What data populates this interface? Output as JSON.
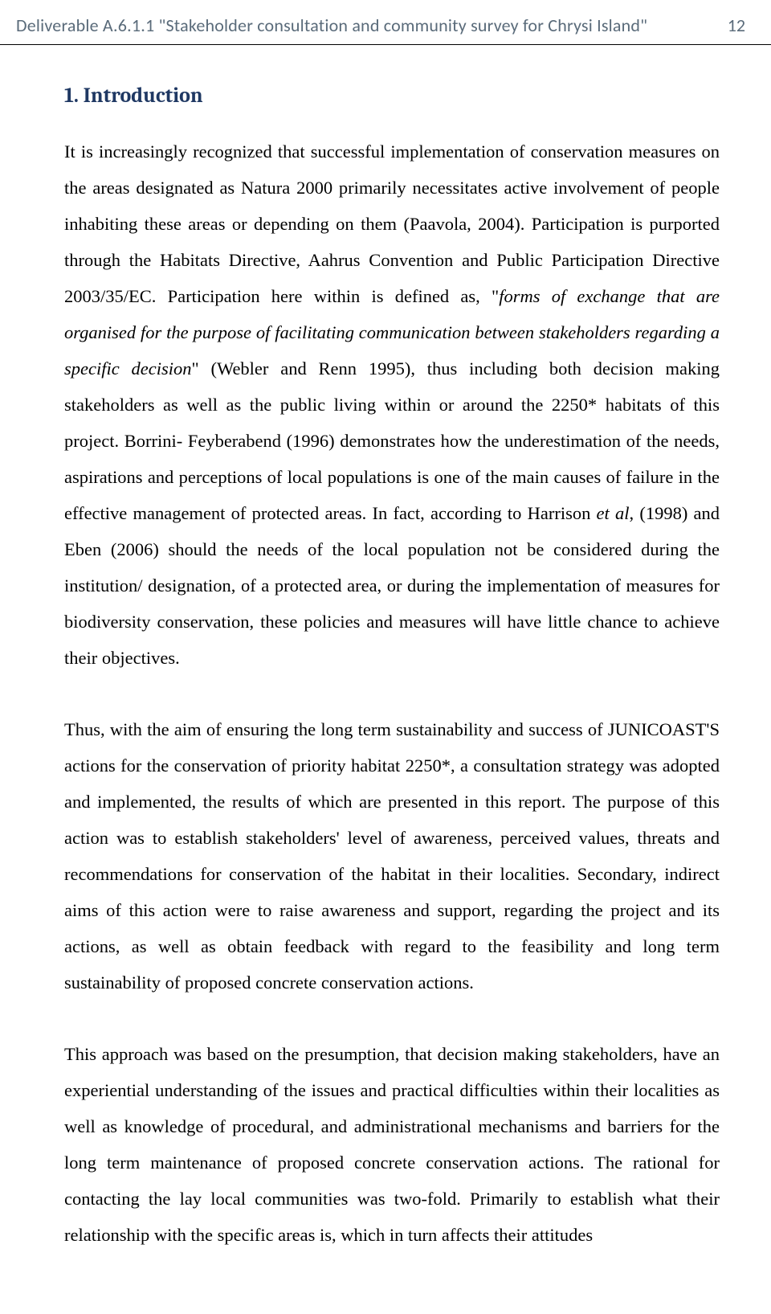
{
  "header": {
    "title": "Deliverable A.6.1.1 \"Stakeholder consultation and community survey for Chrysi Island\"",
    "page_number": "12"
  },
  "section": {
    "heading": "1. Introduction"
  },
  "paragraphs": {
    "p1_a": "It is increasingly recognized that successful implementation of conservation measures on the areas designated as Natura 2000 primarily necessitates active involvement of people inhabiting these areas or depending on them (Paavola, 2004). Participation is purported through the Habitats Directive, Aahrus Convention and Public Participation Directive 2003/35/EC. Participation here within is defined as, \"",
    "p1_italic1": "forms of exchange that are organised for the purpose of facilitating communication between stakeholders regarding a specific decision",
    "p1_b": "\" (Webler and Renn 1995), thus including both decision making stakeholders as well as the public living within or around the 2250* habitats of this project. Borrini- Feyberabend (1996) demonstrates how the underestimation of the needs, aspirations and perceptions of local populations is one of the main causes of failure in the effective management of protected areas. In fact, according to Harrison ",
    "p1_italic2": "et al",
    "p1_c": ", (1998) and Eben (2006) should the needs of the local population not be considered during the institution/ designation, of a protected area, or during the implementation of measures for biodiversity conservation, these policies and measures will have little chance to achieve their objectives.",
    "p2": "Thus, with the aim of ensuring the long term sustainability and success of JUNICOAST'S actions for the conservation of priority habitat 2250*, a consultation strategy was adopted and implemented, the results of which are presented in this report. The purpose of this action was to establish stakeholders' level of awareness, perceived values, threats and recommendations for conservation of the habitat in their localities. Secondary, indirect aims of this action were to raise awareness and support, regarding the project and its actions, as well as obtain feedback with regard to the feasibility and long term sustainability of proposed concrete conservation actions.",
    "p3": "This approach was based on the presumption, that decision making stakeholders, have an experiential understanding of the issues and practical difficulties within their localities as well as knowledge of procedural, and administrational mechanisms and barriers for the long term maintenance of proposed concrete conservation actions. The rational for contacting the lay local communities was two-fold. Primarily to establish what their relationship with the specific areas is, which in turn affects their attitudes"
  },
  "colors": {
    "header_text": "#5a6b7a",
    "heading_text": "#1f3863",
    "body_text": "#000000",
    "background": "#ffffff",
    "border": "#000000"
  },
  "typography": {
    "header_font": "Calibri",
    "header_size_pt": 16,
    "heading_font": "Cambria",
    "heading_size_pt": 20,
    "body_font": "Times New Roman",
    "body_size_pt": 17,
    "line_height": 2.0,
    "text_align": "justify"
  }
}
